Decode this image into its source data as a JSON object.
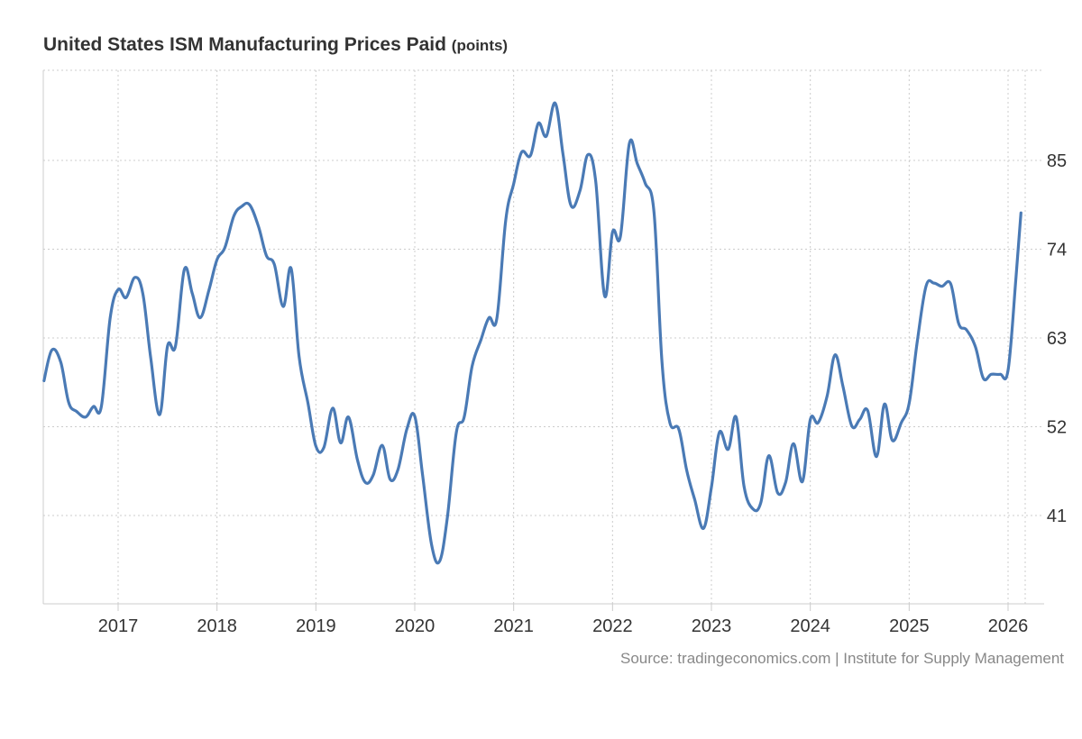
{
  "header": {
    "title": "United States ISM Manufacturing Prices Paid",
    "unit": "(points)"
  },
  "footer": {
    "source": "Source: tradingeconomics.com | Institute for Supply Management"
  },
  "colors": {
    "line": "#4a7ab5",
    "grid": "#cccccc",
    "axis": "#cccccc",
    "text": "#333333",
    "source": "#888888"
  },
  "chart_data": {
    "type": "line",
    "title": "United States ISM Manufacturing Prices Paid",
    "unit": "points",
    "xlabel": "",
    "ylabel": "",
    "x_range": [
      2016.25,
      2026.13
    ],
    "ylim": [
      30,
      96
    ],
    "yticks": [
      41,
      52,
      63,
      74,
      85
    ],
    "xticks": [
      "2017",
      "2018",
      "2019",
      "2020",
      "2021",
      "2022",
      "2023",
      "2024",
      "2025",
      "2026"
    ],
    "grid": true,
    "series": [
      {
        "name": "ISM Manufacturing Prices Paid",
        "points": [
          [
            2016.25,
            57.7
          ],
          [
            2016.33,
            61.5
          ],
          [
            2016.42,
            60.0
          ],
          [
            2016.5,
            55.0
          ],
          [
            2016.58,
            53.9
          ],
          [
            2016.67,
            53.2
          ],
          [
            2016.75,
            54.5
          ],
          [
            2016.83,
            54.5
          ],
          [
            2016.92,
            65.5
          ],
          [
            2017.0,
            69.0
          ],
          [
            2017.08,
            68.0
          ],
          [
            2017.17,
            70.5
          ],
          [
            2017.25,
            68.5
          ],
          [
            2017.33,
            60.5
          ],
          [
            2017.42,
            53.5
          ],
          [
            2017.5,
            62.0
          ],
          [
            2017.58,
            62.0
          ],
          [
            2017.67,
            71.5
          ],
          [
            2017.75,
            68.5
          ],
          [
            2017.83,
            65.5
          ],
          [
            2017.92,
            69.0
          ],
          [
            2018.0,
            72.7
          ],
          [
            2018.08,
            74.2
          ],
          [
            2018.17,
            78.1
          ],
          [
            2018.25,
            79.3
          ],
          [
            2018.33,
            79.5
          ],
          [
            2018.42,
            76.8
          ],
          [
            2018.5,
            73.2
          ],
          [
            2018.58,
            72.1
          ],
          [
            2018.67,
            66.9
          ],
          [
            2018.75,
            71.6
          ],
          [
            2018.83,
            60.7
          ],
          [
            2018.92,
            54.9
          ],
          [
            2019.0,
            49.6
          ],
          [
            2019.08,
            49.4
          ],
          [
            2019.17,
            54.3
          ],
          [
            2019.25,
            50.0
          ],
          [
            2019.33,
            53.2
          ],
          [
            2019.42,
            47.9
          ],
          [
            2019.5,
            45.1
          ],
          [
            2019.58,
            46.0
          ],
          [
            2019.67,
            49.7
          ],
          [
            2019.75,
            45.5
          ],
          [
            2019.83,
            46.7
          ],
          [
            2019.92,
            51.7
          ],
          [
            2020.0,
            53.3
          ],
          [
            2020.08,
            45.9
          ],
          [
            2020.17,
            37.4
          ],
          [
            2020.25,
            35.3
          ],
          [
            2020.33,
            40.8
          ],
          [
            2020.42,
            51.3
          ],
          [
            2020.5,
            53.2
          ],
          [
            2020.58,
            59.5
          ],
          [
            2020.67,
            62.8
          ],
          [
            2020.75,
            65.5
          ],
          [
            2020.83,
            65.4
          ],
          [
            2020.92,
            77.6
          ],
          [
            2021.0,
            82.1
          ],
          [
            2021.08,
            86.0
          ],
          [
            2021.17,
            85.6
          ],
          [
            2021.25,
            89.6
          ],
          [
            2021.33,
            88.0
          ],
          [
            2021.42,
            92.1
          ],
          [
            2021.5,
            85.7
          ],
          [
            2021.58,
            79.4
          ],
          [
            2021.67,
            81.2
          ],
          [
            2021.75,
            85.7
          ],
          [
            2021.83,
            82.4
          ],
          [
            2021.92,
            68.2
          ],
          [
            2022.0,
            76.1
          ],
          [
            2022.08,
            75.6
          ],
          [
            2022.17,
            87.1
          ],
          [
            2022.25,
            84.6
          ],
          [
            2022.33,
            82.2
          ],
          [
            2022.42,
            78.5
          ],
          [
            2022.5,
            60.0
          ],
          [
            2022.58,
            52.5
          ],
          [
            2022.67,
            51.7
          ],
          [
            2022.75,
            46.6
          ],
          [
            2022.83,
            43.0
          ],
          [
            2022.92,
            39.4
          ],
          [
            2023.0,
            44.5
          ],
          [
            2023.08,
            51.3
          ],
          [
            2023.17,
            49.2
          ],
          [
            2023.25,
            53.2
          ],
          [
            2023.33,
            44.6
          ],
          [
            2023.42,
            41.8
          ],
          [
            2023.5,
            42.6
          ],
          [
            2023.58,
            48.4
          ],
          [
            2023.67,
            43.8
          ],
          [
            2023.75,
            45.1
          ],
          [
            2023.83,
            49.9
          ],
          [
            2023.92,
            45.2
          ],
          [
            2024.0,
            52.9
          ],
          [
            2024.08,
            52.5
          ],
          [
            2024.17,
            55.8
          ],
          [
            2024.25,
            60.9
          ],
          [
            2024.33,
            57.0
          ],
          [
            2024.42,
            52.1
          ],
          [
            2024.5,
            52.9
          ],
          [
            2024.58,
            54.0
          ],
          [
            2024.67,
            48.3
          ],
          [
            2024.75,
            54.8
          ],
          [
            2024.83,
            50.3
          ],
          [
            2024.92,
            52.5
          ],
          [
            2025.0,
            54.9
          ],
          [
            2025.08,
            62.4
          ],
          [
            2025.17,
            69.4
          ],
          [
            2025.25,
            69.8
          ],
          [
            2025.33,
            69.4
          ],
          [
            2025.42,
            69.7
          ],
          [
            2025.5,
            64.8
          ],
          [
            2025.58,
            64.0
          ],
          [
            2025.67,
            61.9
          ],
          [
            2025.75,
            58.0
          ],
          [
            2025.83,
            58.5
          ],
          [
            2025.92,
            58.5
          ],
          [
            2026.0,
            59.0
          ],
          [
            2026.08,
            70.5
          ],
          [
            2026.13,
            78.5
          ]
        ]
      }
    ]
  }
}
